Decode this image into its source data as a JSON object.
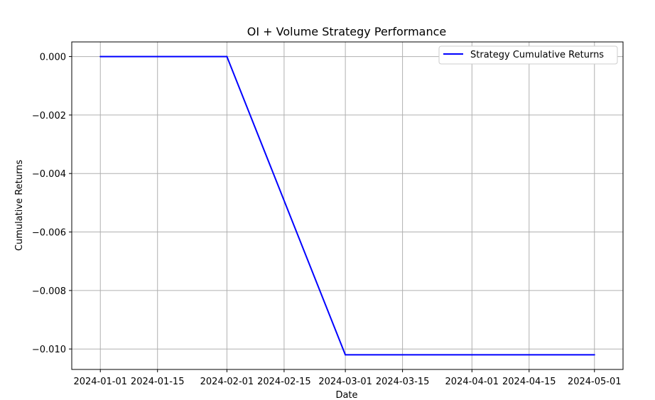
{
  "chart_data": {
    "type": "line",
    "title": "OI + Volume Strategy Performance",
    "xlabel": "Date",
    "ylabel": "Cumulative Returns",
    "x_ticks": [
      "2024-01-01",
      "2024-01-15",
      "2024-02-01",
      "2024-02-15",
      "2024-03-01",
      "2024-03-15",
      "2024-04-01",
      "2024-04-15",
      "2024-05-01"
    ],
    "y_ticks": [
      0.0,
      -0.002,
      -0.004,
      -0.006,
      -0.008,
      -0.01
    ],
    "y_tick_labels": [
      "0.000",
      "−0.002",
      "−0.004",
      "−0.006",
      "−0.008",
      "−0.010"
    ],
    "ylim": [
      -0.0107,
      0.0005
    ],
    "xlim": [
      "2023-12-25",
      "2024-05-08"
    ],
    "grid": true,
    "legend": "top-right",
    "series": [
      {
        "name": "Strategy Cumulative Returns",
        "color": "#0000ff",
        "x": [
          "2024-01-01",
          "2024-02-01",
          "2024-03-01",
          "2024-04-01",
          "2024-05-01"
        ],
        "values": [
          0.0,
          0.0,
          -0.0102,
          -0.0102,
          -0.0102
        ]
      }
    ]
  }
}
